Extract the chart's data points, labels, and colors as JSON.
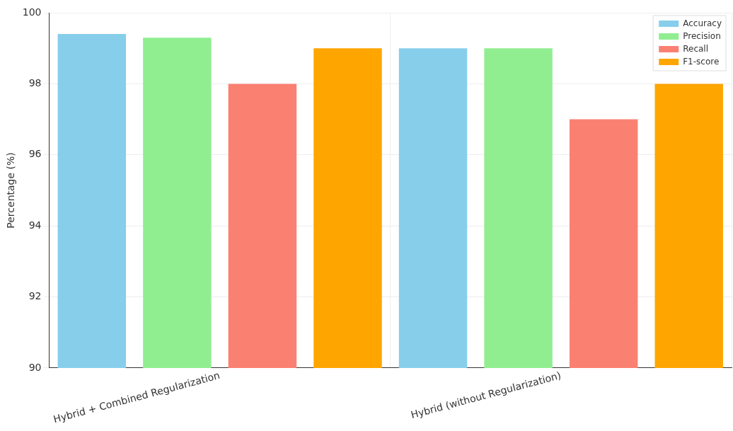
{
  "chart_data": {
    "type": "bar",
    "ylabel": "Percentage (%)",
    "categories": [
      "Hybrid + Combined Regularization",
      "Hybrid (without Regularization)"
    ],
    "series": [
      {
        "name": "Accuracy",
        "color": "#87ceeb",
        "values": [
          99.4,
          99.0
        ]
      },
      {
        "name": "Precision",
        "color": "#90ee90",
        "values": [
          99.3,
          99.0
        ]
      },
      {
        "name": "Recall",
        "color": "#fa8072",
        "values": [
          98.0,
          97.0
        ]
      },
      {
        "name": "F1-score",
        "color": "#ffa500",
        "values": [
          99.0,
          98.0
        ]
      }
    ],
    "ylim": [
      90,
      100
    ],
    "yticks": [
      90,
      92,
      94,
      96,
      98,
      100
    ],
    "grid": true,
    "legend": "top right"
  }
}
